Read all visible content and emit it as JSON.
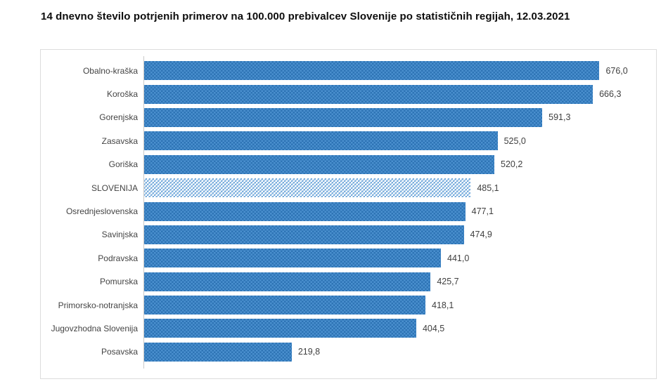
{
  "title": "14 dnevno število potrjenih primerov na 100.000 prebivalcev Slovenije po statističnih regijah, 12.03.2021",
  "colors": {
    "bar_mid": "#4a8fce",
    "bar_dark": "#2e74b5",
    "bar_light": "#5b9bd5",
    "highlight_bg": "#ffffff",
    "axis_line": "#c9c9c9",
    "label_text": "#444444",
    "value_text": "#3f3f3f",
    "frame_border": "#dcdcdc"
  },
  "chart_data": {
    "type": "bar",
    "orientation": "horizontal",
    "title": "14 dnevno število potrjenih primerov na 100.000 prebivalcev Slovenije po statističnih regijah, 12.03.2021",
    "xlabel": "",
    "ylabel": "",
    "xlim": [
      0,
      760
    ],
    "grid": false,
    "legend": false,
    "decimal_separator": ",",
    "highlight_category": "SLOVENIJA",
    "categories": [
      "Obalno-kraška",
      "Koroška",
      "Gorenjska",
      "Zasavska",
      "Goriška",
      "SLOVENIJA",
      "Osrednjeslovenska",
      "Savinjska",
      "Podravska",
      "Pomurska",
      "Primorsko-notranjska",
      "Jugovzhodna Slovenija",
      "Posavska"
    ],
    "values": [
      676.0,
      666.3,
      591.3,
      525.0,
      520.2,
      485.1,
      477.1,
      474.9,
      441.0,
      425.7,
      418.1,
      404.5,
      219.8
    ],
    "value_labels": [
      "676,0",
      "666,3",
      "591,3",
      "525,0",
      "520,2",
      "485,1",
      "477,1",
      "474,9",
      "441,0",
      "425,7",
      "418,1",
      "404,5",
      "219,8"
    ]
  }
}
